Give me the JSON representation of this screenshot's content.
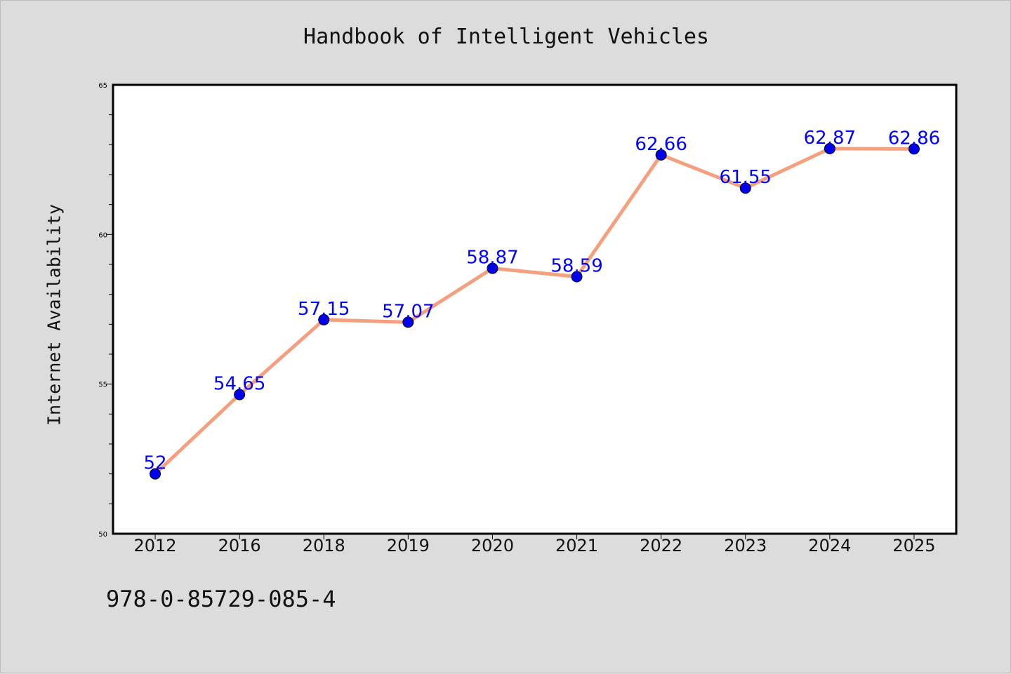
{
  "chart_data": {
    "type": "line",
    "title": "Handbook of Intelligent Vehicles",
    "xlabel": "",
    "ylabel": "Internet Availability",
    "categories": [
      "2012",
      "2016",
      "2018",
      "2019",
      "2020",
      "2021",
      "2022",
      "2023",
      "2024",
      "2025"
    ],
    "series": [
      {
        "values": [
          52,
          54.65,
          57.15,
          57.07,
          58.87,
          58.59,
          62.66,
          61.55,
          62.87,
          62.86
        ],
        "data_labels": [
          "52",
          "54.65",
          "57.15",
          "57.07",
          "58.87",
          "58.59",
          "62.66",
          "61.55",
          "62.87",
          "62.86"
        ],
        "line_color": "#f4a07e",
        "marker_color": "#0000ee",
        "label_color": "#0000ff"
      }
    ],
    "ylim": [
      50,
      65
    ],
    "yticks": [
      "50",
      "55",
      "60",
      "65"
    ],
    "grid": false,
    "legend": "none"
  },
  "footer": {
    "isbn": "978-0-85729-085-4"
  }
}
